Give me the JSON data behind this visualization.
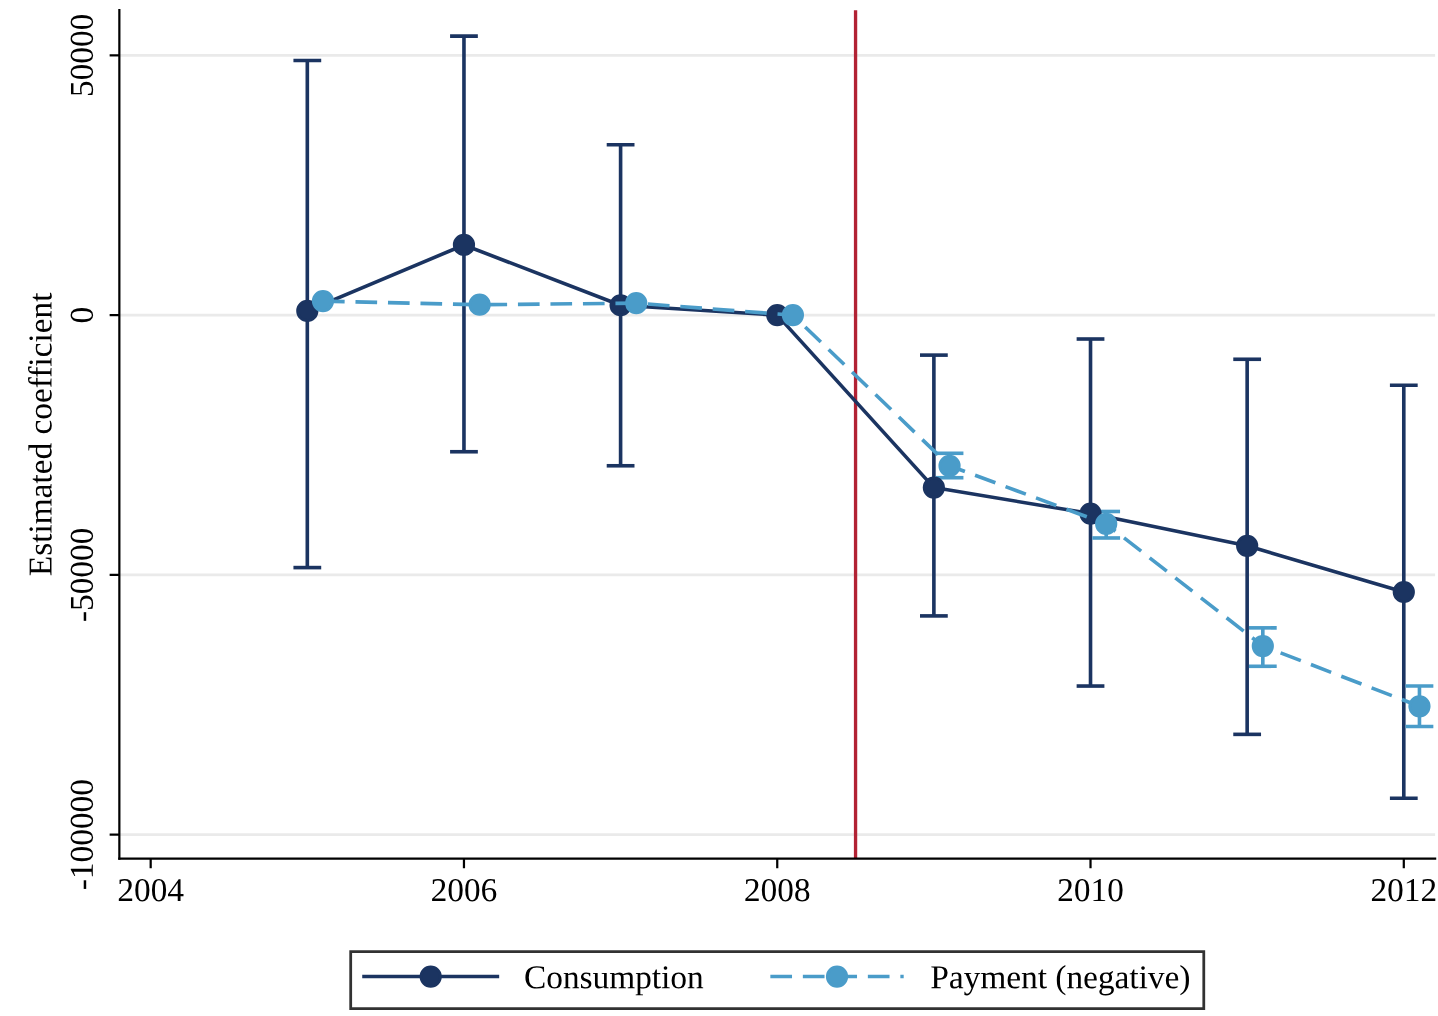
{
  "chart_data": {
    "type": "line",
    "ylabel": "Estimated coefficient",
    "xlim": [
      2003.8,
      2012.2
    ],
    "ylim": [
      -104600,
      58700
    ],
    "xticks": [
      2004,
      2006,
      2008,
      2010,
      2012
    ],
    "yticks": [
      50000,
      0,
      -50000,
      -100000
    ],
    "grid": "y",
    "legend": "bottom",
    "marker": "circle",
    "ref_lines": [
      {
        "axis": "x",
        "value": 2008.5,
        "color": "#b22234"
      }
    ],
    "series": [
      {
        "name": "Consumption",
        "color": "#1b3461",
        "line_style": "solid",
        "x": [
          2005,
          2006,
          2007,
          2008,
          2009,
          2010,
          2011,
          2012
        ],
        "values": [
          800,
          13500,
          1900,
          0,
          -33200,
          -38200,
          -44400,
          -53300
        ],
        "errors": [
          [
            -48600,
            49000
          ],
          [
            -26300,
            53700
          ],
          [
            -29000,
            32800
          ],
          null,
          [
            -57900,
            -7700
          ],
          [
            -71400,
            -4600
          ],
          [
            -80700,
            -8500
          ],
          [
            -93000,
            -13500
          ]
        ]
      },
      {
        "name": "Payment (negative)",
        "color": "#4a9cc9",
        "line_style": "dashed",
        "x": [
          2005.1,
          2006.1,
          2007.1,
          2008.1,
          2009.1,
          2010.1,
          2011.1,
          2012.1
        ],
        "values": [
          2700,
          2000,
          2300,
          0,
          -29000,
          -40200,
          -63700,
          -75300
        ],
        "errors": [
          null,
          null,
          null,
          null,
          [
            -31300,
            -26600
          ],
          [
            -42900,
            -37800
          ],
          [
            -67600,
            -60200
          ],
          [
            -79200,
            -71400
          ]
        ]
      }
    ]
  }
}
